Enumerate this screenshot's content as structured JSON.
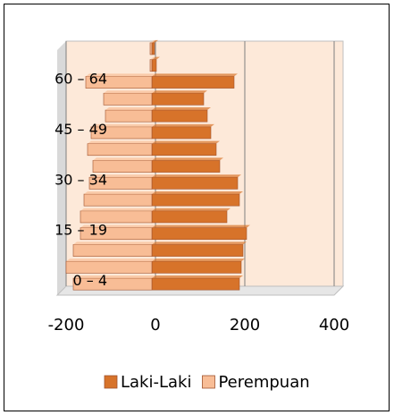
{
  "chart_data": {
    "type": "bar",
    "categories": [
      "0 – 4",
      null,
      null,
      "15 – 19",
      null,
      null,
      "30 – 34",
      null,
      null,
      "45 – 49",
      null,
      null,
      "60 – 64",
      null,
      null
    ],
    "series": [
      {
        "name": "Laki-Laki",
        "color": "#d7732a",
        "values": [
          196,
          200,
          204,
          212,
          168,
          196,
          192,
          152,
          144,
          132,
          124,
          116,
          184,
          10,
          6
        ]
      },
      {
        "name": "Perempuan",
        "color": "#f8bd96",
        "values": [
          -176,
          -192,
          -176,
          -160,
          -160,
          -152,
          -140,
          -132,
          -144,
          -136,
          -104,
          -108,
          -148,
          -4,
          -4
        ]
      }
    ],
    "xlim": [
      -200,
      400
    ],
    "xticks": [
      -200,
      0,
      200,
      400
    ],
    "grid": true,
    "legend": "bottom"
  }
}
